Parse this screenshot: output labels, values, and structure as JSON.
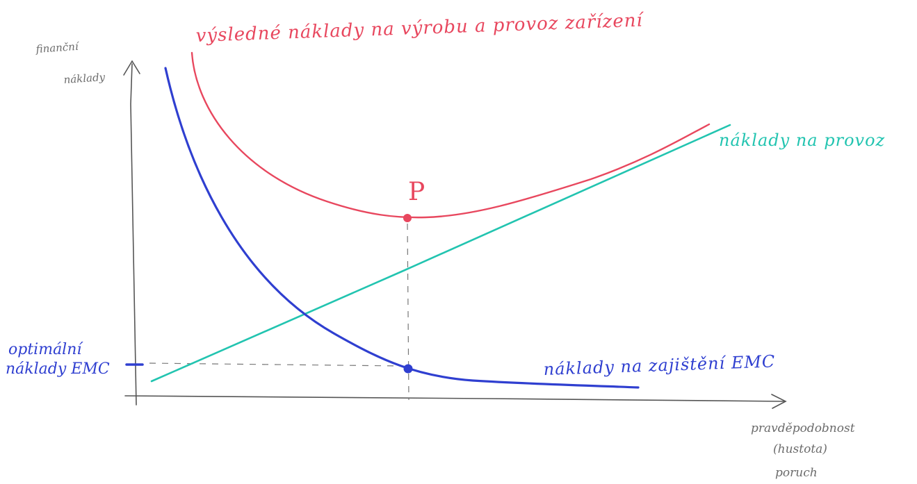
{
  "title": "výsledné náklady na výrobu a provoz zařízení",
  "y_axis_label": [
    "finanční",
    "náklady"
  ],
  "x_axis_label": [
    "pravděpodobnost",
    "(hustota)",
    "poruch"
  ],
  "curves": {
    "total": {
      "label": "výsledné náklady na výrobu a provoz zařízení",
      "color": "#e8475e"
    },
    "operation": {
      "label": "náklady na provoz",
      "color": "#22c4b0"
    },
    "emc": {
      "label": "náklady na zajištění EMC",
      "color": "#2f3fd0"
    }
  },
  "optimum": {
    "point_label": "P",
    "y_label": [
      "optimální",
      "náklady EMC"
    ]
  },
  "colors": {
    "axes": "#555555",
    "guides": "#777777"
  }
}
